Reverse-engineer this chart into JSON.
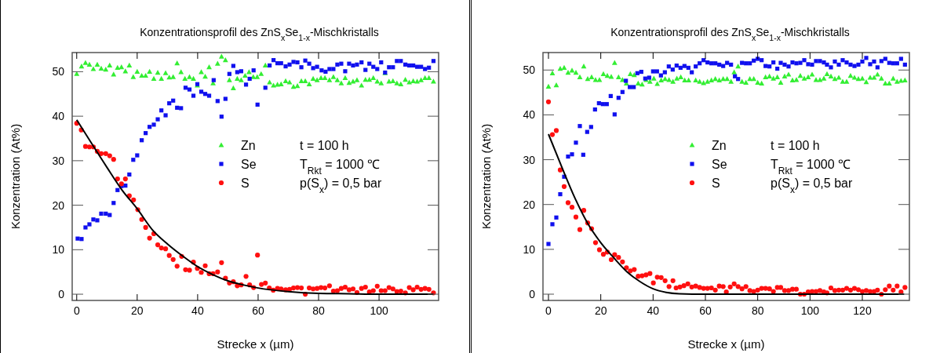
{
  "chart_data": [
    {
      "type": "scatter",
      "title": "Konzentrationsprofil des ZnS$_{x}$Se$_{1-x}$-Mischkristalls",
      "xlabel": "Strecke x (µm)",
      "ylabel": "Konzentration  (At%)",
      "xlim": [
        -1.5,
        119.7
      ],
      "ylim": [
        -1.4,
        54.3
      ],
      "xticks": [
        0,
        20,
        40,
        60,
        80,
        100
      ],
      "yticks": [
        0,
        10,
        20,
        30,
        40,
        50
      ],
      "legend": "right",
      "annotations": [
        "t = 100 h",
        "T$_{Rkt}$ = 1000 ℃",
        "p(S$_{x}$) = 0,5 bar"
      ],
      "series": [
        {
          "name": "Zn",
          "color": "#33ee33",
          "marker": "triangle",
          "x": [
            0,
            1.6,
            2.9,
            4.2,
            5.5,
            6.8,
            8.1,
            9.6,
            10.9,
            12.2,
            13.5,
            14.8,
            16.1,
            17.4,
            18.7,
            20,
            21.5,
            22.8,
            24.1,
            25.5,
            26.8,
            28,
            29.4,
            30.6,
            31.9,
            33.2,
            34.5,
            35.8,
            37.3,
            38.6,
            39.9,
            41.2,
            42.5,
            43.8,
            45.1,
            46.6,
            47.9,
            49.2,
            50.5,
            51.8,
            53.1,
            54.4,
            55.7,
            57,
            58.4,
            59.7,
            61,
            62.4,
            63.8,
            65.1,
            66.4,
            67.6,
            69.1,
            70.4,
            71.7,
            73,
            74.3,
            75.6,
            76.9,
            78.2,
            79.5,
            80.8,
            82.1,
            83.6,
            84.9,
            86.2,
            87.5,
            88.8,
            90.1,
            91.4,
            92.7,
            94.2,
            95.5,
            96.8,
            98.1,
            99.4,
            100.7,
            102,
            103.3,
            104.6,
            105.9,
            107.2,
            108.7,
            110,
            111.3,
            112.6,
            113.9,
            115.2,
            116.5,
            118
          ],
          "values": [
            49.5,
            51.2,
            52,
            51.6,
            50.6,
            51.6,
            50.7,
            50.5,
            51.4,
            49.4,
            50.9,
            51,
            50.1,
            51.4,
            48.8,
            50,
            49.1,
            49.1,
            50,
            48.4,
            49.8,
            48.4,
            49.7,
            48.7,
            48.8,
            51.9,
            49.9,
            48.4,
            48.8,
            48.4,
            46.9,
            49.9,
            48.9,
            51,
            47.4,
            51.8,
            53.4,
            52.6,
            48.1,
            46.3,
            48.4,
            48.1,
            49.1,
            49.9,
            48.8,
            48.8,
            49.5,
            51.4,
            47.6,
            46.9,
            47.1,
            47.2,
            47.9,
            47.6,
            46.6,
            46.8,
            47.9,
            47.9,
            47.2,
            48.4,
            48.1,
            48.6,
            48.6,
            48.1,
            48.8,
            48.1,
            47.4,
            48.6,
            47.5,
            47.8,
            48.1,
            46.9,
            48.2,
            48.2,
            48.6,
            47.8,
            47.4,
            49.7,
            47.8,
            47.9,
            47.4,
            47.2,
            48.2,
            47.6,
            47.9,
            47.8,
            48.1,
            48.6,
            48.6,
            47.8
          ]
        },
        {
          "name": "Se",
          "color": "#1010ee",
          "marker": "square",
          "x": [
            0.3,
            1.6,
            2.9,
            4.2,
            5.5,
            6.8,
            8.1,
            9.6,
            10.9,
            12.2,
            13.5,
            14.8,
            16.1,
            17.4,
            18.7,
            20,
            21.5,
            22.8,
            24.1,
            25.5,
            26.8,
            28,
            29.4,
            30.6,
            31.9,
            33.2,
            34.5,
            36,
            37.3,
            38.6,
            39.9,
            41.2,
            42.5,
            43.8,
            45.3,
            46.6,
            47.9,
            49.2,
            50.5,
            51.8,
            53.1,
            54.4,
            56,
            57.2,
            58.5,
            59.8,
            62.4,
            63.8,
            65.1,
            66.4,
            67.6,
            69.1,
            70.4,
            71.7,
            73,
            74.3,
            75.6,
            76.9,
            78.2,
            79.5,
            81,
            82.3,
            83.6,
            84.9,
            86.2,
            87.5,
            88.8,
            90.1,
            91.4,
            92.7,
            94.2,
            95.5,
            96.8,
            98.1,
            99.4,
            100.7,
            102,
            103.3,
            104.6,
            105.9,
            107.2,
            108.7,
            110,
            111.3,
            112.6,
            113.9,
            115.2,
            116.5,
            118
          ],
          "values": [
            12.5,
            12.4,
            15,
            15.7,
            16.8,
            16.6,
            18.1,
            18.1,
            17.8,
            20.5,
            23.4,
            24.3,
            24.4,
            26.9,
            30.2,
            31.2,
            34.6,
            36.2,
            37.6,
            38.1,
            39.3,
            41.3,
            40.2,
            42.9,
            43.5,
            41.9,
            41.8,
            46.4,
            46,
            44.6,
            47.2,
            45.5,
            45,
            44.6,
            48.1,
            43.4,
            39.9,
            43.9,
            49.5,
            51.3,
            49.9,
            50.1,
            47.1,
            48.4,
            50.3,
            42.6,
            46.4,
            51.4,
            52.6,
            51.9,
            51.9,
            51.2,
            51.6,
            52.2,
            52.1,
            51,
            52.5,
            51.8,
            50.8,
            51.1,
            50.3,
            50,
            50.6,
            50.6,
            51.6,
            51.8,
            50.1,
            51.8,
            51.4,
            51.6,
            52.1,
            50.4,
            51.8,
            51.1,
            50.6,
            52.1,
            49.8,
            51,
            51,
            52.4,
            52.4,
            51.6,
            51.4,
            51.4,
            51.1,
            51.1,
            50.6,
            50.9,
            52.4
          ]
        },
        {
          "name": "S",
          "color": "#ff1010",
          "marker": "circle",
          "x": [
            0,
            1.5,
            2.9,
            4.2,
            5.5,
            6.8,
            8.1,
            9.6,
            10.9,
            12.2,
            13.5,
            14.8,
            16.1,
            17.4,
            18.8,
            20.2,
            21.5,
            22.8,
            24.1,
            25.5,
            26.8,
            28,
            29.4,
            30.6,
            31.9,
            33.2,
            34.7,
            36,
            37.3,
            38.6,
            39.9,
            41.2,
            42.5,
            43.8,
            45.1,
            46.6,
            47.9,
            49.2,
            50.5,
            51.8,
            53.1,
            54.4,
            56,
            57.2,
            58.5,
            59.8,
            61.1,
            62.4,
            63.7,
            65,
            66.4,
            67.6,
            69.1,
            70.4,
            71.7,
            73,
            74.3,
            75.6,
            76.9,
            78.2,
            79.5,
            80.8,
            82.1,
            83.6,
            84.9,
            86.2,
            87.5,
            88.8,
            90.1,
            91.4,
            92.7,
            94.2,
            95.5,
            96.8,
            98.1,
            99.4,
            100.7,
            102,
            103.3,
            104.6,
            105.9,
            107.2,
            108.7,
            110,
            111.3,
            112.6,
            113.9,
            115.2,
            116.5,
            118
          ],
          "values": [
            38.4,
            36.9,
            33.2,
            33.1,
            33.1,
            32.1,
            31.6,
            31.6,
            31.1,
            30.3,
            25.9,
            24.8,
            25.9,
            22.1,
            21.2,
            19,
            16.8,
            15,
            12.6,
            13.6,
            11.1,
            10.4,
            10.2,
            8.7,
            7.8,
            6.3,
            8.5,
            5.5,
            5.4,
            7.2,
            5.8,
            4.9,
            6.4,
            4.6,
            4.6,
            5,
            7.1,
            3.6,
            2.5,
            2.8,
            1.9,
            2.1,
            4,
            2.1,
            1.5,
            8.8,
            2.2,
            2.5,
            1.4,
            0.9,
            1.3,
            1.2,
            1,
            1.1,
            1.4,
            1.5,
            1.4,
            0,
            1.4,
            1.2,
            1.3,
            1.5,
            1.4,
            1.9,
            0.7,
            0.8,
            1.3,
            1.6,
            1,
            1.2,
            0.4,
            1.3,
            1.6,
            0.5,
            0.8,
            1.8,
            0.8,
            0.8,
            1.5,
            1.2,
            0.6,
            0.7,
            0.3,
            1.5,
            1,
            1.6,
            1.1,
            1.3,
            1.1,
            0.3
          ]
        },
        {
          "type": "line",
          "color": "#000000",
          "marker": "none",
          "x": [
            0,
            5,
            10,
            15,
            20,
            25,
            30,
            35,
            40,
            45,
            50,
            55,
            60,
            70,
            80,
            90,
            100,
            118
          ],
          "values": [
            39.2,
            33.8,
            28.5,
            23.4,
            19.2,
            14.5,
            11.3,
            8.6,
            6.2,
            4.4,
            3,
            2.1,
            1.4,
            0.6,
            0.2,
            0.1,
            0,
            0
          ]
        }
      ]
    },
    {
      "type": "scatter",
      "title": "Konzentrationsprofil des ZnS$_{x}$Se$_{1-x}$-Mischkristalls",
      "xlabel": "Strecke x (µm)",
      "ylabel": "Konzentration  (At%)",
      "xlim": [
        -2.1,
        138
      ],
      "ylim": [
        -1.4,
        53.9
      ],
      "xticks": [
        0,
        20,
        40,
        60,
        80,
        100,
        120
      ],
      "yticks": [
        0,
        10,
        20,
        30,
        40,
        50
      ],
      "legend": "right",
      "annotations": [
        "t = 100 h",
        "T$_{Rkt}$ = 1000 ℃",
        "p(S$_{x}$) = 0,5 bar"
      ],
      "series": [
        {
          "name": "Zn",
          "color": "#33ee33",
          "marker": "triangle",
          "x": [
            0,
            1.5,
            3,
            4.5,
            6,
            7.5,
            9,
            10.5,
            12,
            13.5,
            15,
            16.5,
            18,
            19.5,
            21,
            22.5,
            24,
            25.3,
            26.8,
            28.3,
            29.8,
            31.3,
            32.8,
            34.3,
            35.8,
            37.3,
            38.8,
            40.3,
            41.6,
            43.1,
            44.6,
            46.1,
            47.6,
            49.1,
            50.6,
            52.1,
            53.6,
            56.3,
            57.8,
            59.3,
            60.8,
            62.3,
            63.8,
            65.3,
            66.8,
            68.3,
            69.8,
            71,
            72.5,
            74,
            75.5,
            77,
            78.5,
            80,
            81.5,
            83,
            84.5,
            86,
            87.5,
            88.8,
            90.3,
            91.8,
            93.3,
            94.8,
            96.3,
            97.8,
            99.3,
            100.8,
            102.3,
            103.8,
            105.3,
            106.5,
            108,
            109.5,
            111,
            112.5,
            114,
            115.5,
            117,
            118.5,
            120,
            121.5,
            123,
            124.5,
            125.8,
            127.3,
            128.8,
            130.3,
            131.8,
            133.3,
            134.8,
            136.3
          ],
          "values": [
            46.3,
            49.3,
            46.6,
            50.3,
            50.5,
            49.4,
            49.9,
            49.4,
            48.4,
            50.8,
            48,
            48.4,
            47.8,
            47.8,
            49.1,
            48.7,
            48.5,
            51.6,
            48.4,
            47.8,
            47,
            49.1,
            48.9,
            47,
            46.8,
            47.8,
            47.4,
            48.1,
            46.9,
            47.7,
            48,
            47.8,
            47.4,
            48.1,
            48.4,
            47.7,
            47.7,
            47.7,
            47.4,
            47.1,
            47.4,
            47.7,
            48,
            47.7,
            48,
            48,
            47.4,
            49.5,
            50.8,
            47.4,
            47.2,
            48,
            48,
            47.2,
            47,
            48.4,
            48.6,
            48.1,
            48.4,
            47.2,
            48.6,
            49,
            47.7,
            47.8,
            48.7,
            48.1,
            48.4,
            49,
            47.8,
            47.8,
            48.1,
            49.1,
            48.6,
            48,
            48.3,
            47.4,
            47.4,
            48.7,
            48.3,
            48,
            48.1,
            47.3,
            48.3,
            48.3,
            49,
            48.1,
            47,
            47,
            48.1,
            47.4,
            47.6,
            47.7
          ]
        },
        {
          "name": "Se",
          "color": "#1010ee",
          "marker": "square",
          "x": [
            0,
            1.5,
            3,
            4.5,
            6,
            7.5,
            9,
            10.5,
            12,
            13.3,
            14.8,
            16.3,
            17.8,
            19.3,
            20.8,
            22.3,
            23.8,
            25.3,
            26.8,
            28.3,
            29.6,
            31.1,
            32.6,
            34,
            35.5,
            37,
            38.5,
            40,
            41.5,
            43,
            44.5,
            46,
            47.5,
            49,
            50.5,
            52,
            53.5,
            54.8,
            56.3,
            57.8,
            59.3,
            60.8,
            62.3,
            63.8,
            65.3,
            66.8,
            68.3,
            69.8,
            71.3,
            72.5,
            74,
            75.5,
            77,
            78.5,
            80,
            81.5,
            83,
            84.5,
            86,
            87.5,
            88.8,
            90.3,
            91.8,
            93.3,
            94.8,
            96.3,
            97.8,
            99.3,
            100.8,
            102.3,
            103.8,
            105.3,
            106.5,
            108,
            109.5,
            111,
            112.5,
            114,
            115.5,
            117,
            118.5,
            120,
            121.5,
            123,
            124.5,
            125.8,
            127.3,
            128.8,
            130.3,
            131.8,
            133.3,
            134.8,
            136.3
          ],
          "values": [
            11.2,
            15.6,
            17.1,
            22.3,
            26.2,
            30.7,
            31.2,
            33.8,
            37.5,
            31.1,
            36.2,
            37.3,
            41.2,
            42.6,
            42.4,
            42.4,
            44.2,
            40.1,
            43.8,
            45.1,
            47.6,
            46.2,
            46.2,
            49.3,
            49.6,
            48.1,
            48.3,
            49.7,
            49.7,
            48.8,
            49.5,
            50.8,
            50.1,
            51,
            50.5,
            50.9,
            50.5,
            49.5,
            50.8,
            51.5,
            52.2,
            51.7,
            51.5,
            51.5,
            51.2,
            50.9,
            51.6,
            51.2,
            48.6,
            48,
            51.6,
            51.5,
            51.5,
            52.1,
            52.5,
            52.2,
            50.9,
            50.8,
            51.7,
            50.3,
            51.6,
            51.2,
            50.8,
            51.7,
            51.5,
            51.6,
            52.2,
            51.3,
            51.2,
            52,
            52,
            51.7,
            51.2,
            50.6,
            51.9,
            51.2,
            52.2,
            51.7,
            51.2,
            50.9,
            51.2,
            51.9,
            52.7,
            51.3,
            51.9,
            50.6,
            52,
            52.5,
            51.6,
            51.5,
            51.5,
            52.5,
            51.2
          ]
        },
        {
          "name": "S",
          "color": "#ff1010",
          "marker": "circle",
          "x": [
            0,
            1.5,
            3,
            4.5,
            6,
            7.5,
            9,
            10.5,
            12,
            13.5,
            15,
            16.5,
            18,
            19.5,
            21,
            22.5,
            24,
            25.3,
            26.8,
            28.3,
            29.8,
            31.3,
            32.8,
            34.3,
            35.8,
            37.3,
            38.8,
            40.1,
            41.6,
            43.1,
            44.6,
            46.1,
            47.6,
            48.8,
            50.3,
            51.8,
            53.3,
            54.8,
            56.3,
            57.8,
            59.3,
            60.8,
            62.3,
            63.8,
            65.3,
            66.8,
            68,
            69.5,
            71,
            72.5,
            74,
            75.5,
            77,
            78.5,
            80,
            81.5,
            83,
            84.5,
            86,
            87.5,
            88.8,
            90.3,
            91.8,
            93.3,
            94.8,
            96.3,
            97.8,
            99.3,
            100.8,
            102.3,
            103.8,
            105.3,
            106.5,
            108,
            109.5,
            111,
            112.5,
            114,
            115.5,
            117,
            118.5,
            120,
            121.5,
            123,
            124.5,
            125.8,
            127.3,
            128.8,
            130.3,
            131.8,
            133.3,
            134.8,
            136.3
          ],
          "values": [
            42.9,
            35.6,
            36.5,
            27.7,
            24,
            20.4,
            19.4,
            17.2,
            14.4,
            18.7,
            15.9,
            14.6,
            11.5,
            9.9,
            8.9,
            9.4,
            7.7,
            8.8,
            8.2,
            7.2,
            5.9,
            5.2,
            5.5,
            4,
            4.1,
            4.3,
            4.6,
            2.5,
            3.8,
            3.7,
            3,
            1.7,
            3,
            1.4,
            1.6,
            1.9,
            2.3,
            1.6,
            1.8,
            1.5,
            1.3,
            1.3,
            1.4,
            0.9,
            1.8,
            1.7,
            0.5,
            1.6,
            2.3,
            1.7,
            1.2,
            1.7,
            0.8,
            0.6,
            0.9,
            1.3,
            1.3,
            1.2,
            0.6,
            1.5,
            1.5,
            0.8,
            0.8,
            1.1,
            1.1,
            0,
            0,
            0.5,
            0.6,
            0.6,
            0.8,
            0.5,
            0.3,
            1.4,
            0.8,
            0.9,
            0.9,
            1.3,
            0.9,
            1.3,
            1,
            0.6,
            0.8,
            0.6,
            0.6,
            0.9,
            0,
            1,
            1.8,
            0.9,
            1.8,
            0.5,
            1.5
          ]
        },
        {
          "type": "line",
          "color": "#000000",
          "marker": "none",
          "x": [
            0,
            5,
            10,
            15,
            20,
            25,
            30,
            35,
            40,
            45,
            50,
            60,
            136
          ],
          "values": [
            35.7,
            28.5,
            21.6,
            15.8,
            11.5,
            8.1,
            5,
            2.8,
            1.2,
            0.4,
            0.1,
            0,
            0
          ]
        }
      ]
    }
  ]
}
